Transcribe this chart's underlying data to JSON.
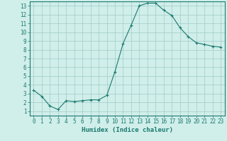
{
  "x": [
    0,
    1,
    2,
    3,
    4,
    5,
    6,
    7,
    8,
    9,
    10,
    11,
    12,
    13,
    14,
    15,
    16,
    17,
    18,
    19,
    20,
    21,
    22,
    23
  ],
  "y": [
    3.4,
    2.7,
    1.6,
    1.2,
    2.2,
    2.1,
    2.2,
    2.3,
    2.3,
    2.8,
    5.5,
    8.7,
    10.8,
    13.0,
    13.3,
    13.3,
    12.5,
    11.9,
    10.5,
    9.5,
    8.8,
    8.6,
    8.4,
    8.3
  ],
  "line_color": "#1a7a6e",
  "marker": "+",
  "marker_size": 3,
  "bg_color": "#d0eeea",
  "grid_color": "#a0ccc8",
  "xlabel": "Humidex (Indice chaleur)",
  "xlim": [
    -0.5,
    23.5
  ],
  "ylim": [
    0.5,
    13.5
  ],
  "yticks": [
    1,
    2,
    3,
    4,
    5,
    6,
    7,
    8,
    9,
    10,
    11,
    12,
    13
  ],
  "xticks": [
    0,
    1,
    2,
    3,
    4,
    5,
    6,
    7,
    8,
    9,
    10,
    11,
    12,
    13,
    14,
    15,
    16,
    17,
    18,
    19,
    20,
    21,
    22,
    23
  ],
  "title_color": "#1a7a6e",
  "label_fontsize": 6.5,
  "tick_fontsize": 5.5,
  "linewidth": 0.8,
  "markeredgewidth": 0.8
}
